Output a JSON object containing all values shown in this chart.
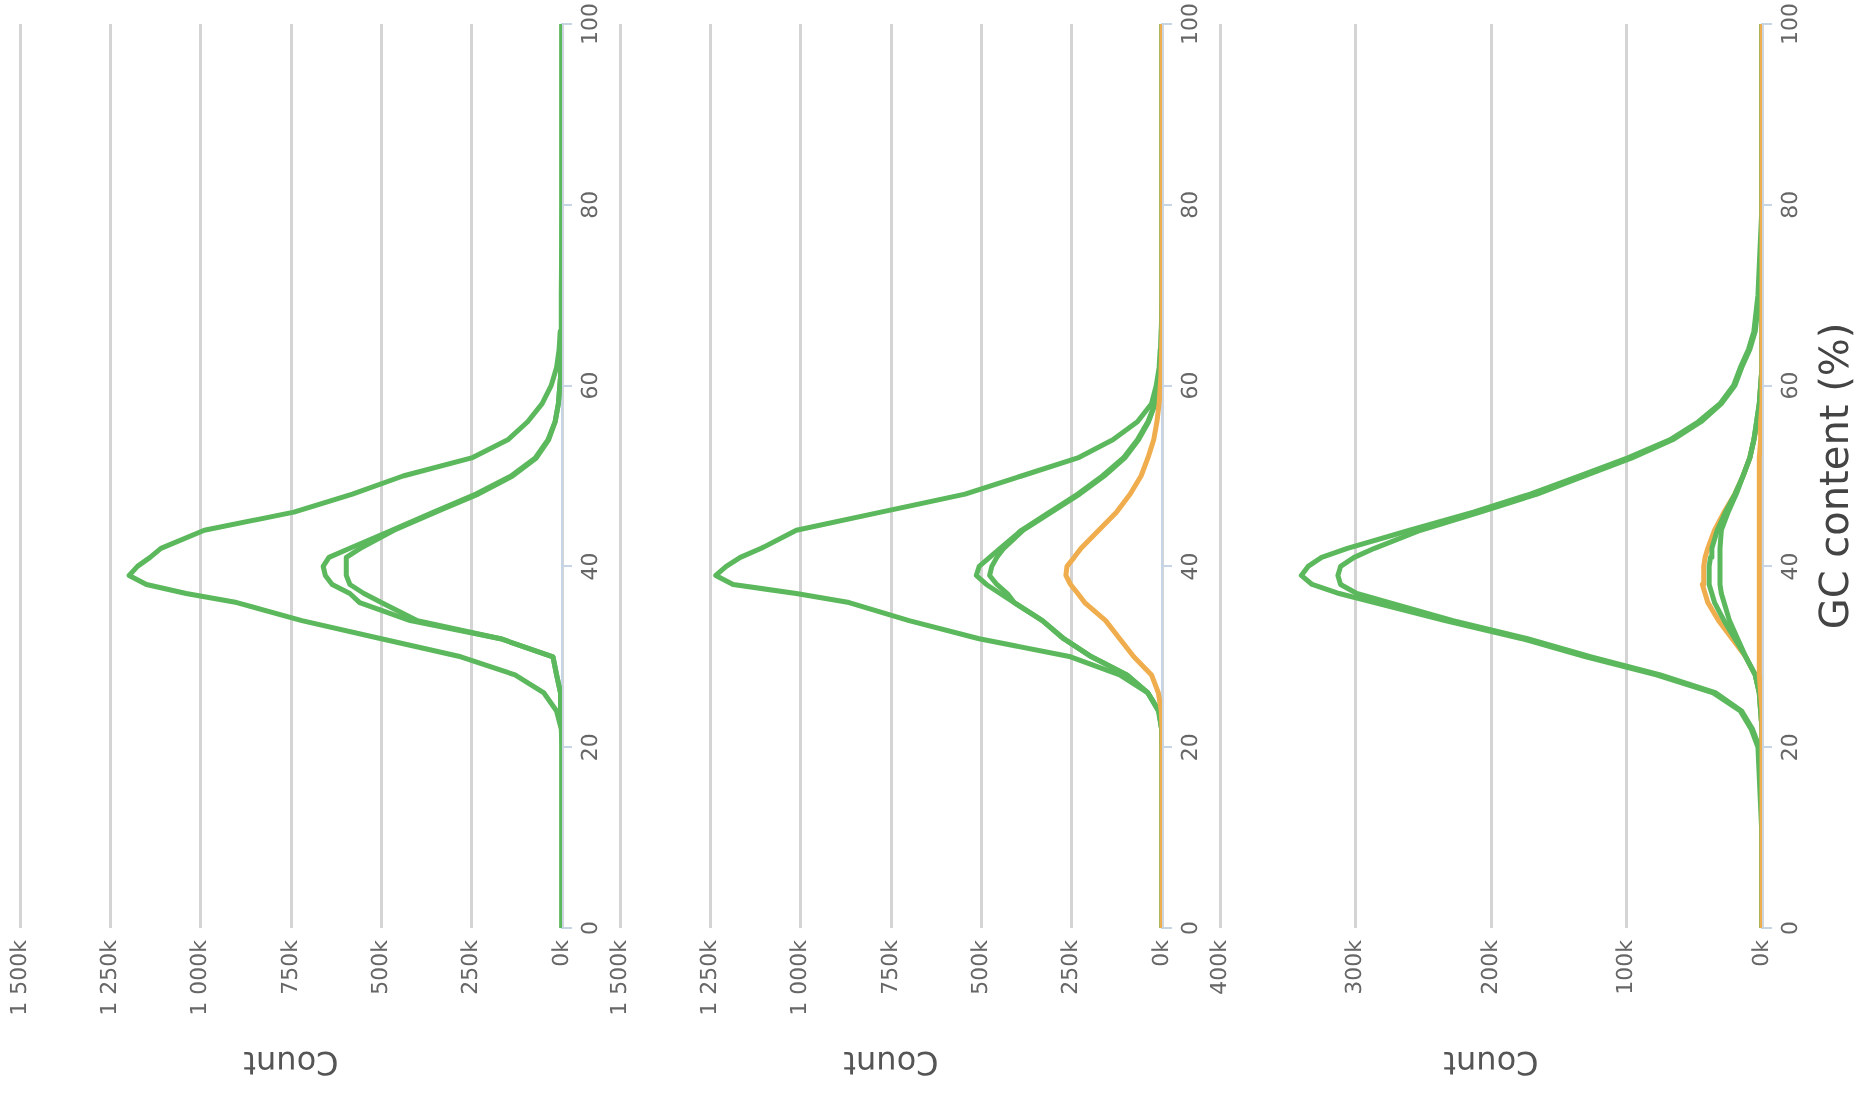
{
  "chart_data": [
    {
      "type": "line",
      "xlabel": "Count",
      "series": [
        {
          "color": "#5cb85c",
          "x": [
            0,
            0,
            2000,
            15000,
            50000,
            130000,
            280000,
            500000,
            720000,
            900000,
            1040000,
            1150000,
            1198000,
            1175000,
            1140000,
            1110000,
            990000,
            742000,
            580000,
            440000,
            250000,
            150000,
            95000,
            55000,
            30000,
            15000,
            8000,
            5000,
            2000,
            0,
            0
          ],
          "values": [
            0,
            20,
            22,
            24,
            26,
            28,
            30,
            32,
            34,
            36,
            37,
            38,
            39,
            40,
            41,
            42,
            44,
            46,
            48,
            50,
            52,
            54,
            56,
            58,
            60,
            62,
            64,
            66,
            70,
            80,
            100
          ]
        },
        {
          "color": "#5cb85c",
          "x": [
            0,
            0,
            1000,
            4000,
            15000,
            25000,
            170000,
            420000,
            560000,
            587000,
            636000,
            655000,
            661000,
            645000,
            587000,
            471000,
            355000,
            238000,
            141000,
            74000,
            39000,
            19000,
            10000,
            4000,
            0,
            0
          ],
          "values": [
            0,
            22,
            24,
            26,
            28,
            30,
            32,
            34,
            36,
            37,
            38,
            39,
            40,
            41,
            42,
            44,
            46,
            48,
            50,
            52,
            54,
            56,
            58,
            61,
            68,
            100
          ]
        },
        {
          "color": "#5cb85c",
          "x": [
            0,
            0,
            1000,
            4000,
            15000,
            25000,
            170000,
            400000,
            500000,
            548000,
            587000,
            597000,
            597000,
            558000,
            465000,
            350000,
            232000,
            137000,
            71000,
            37000,
            19000,
            10000,
            4000,
            0,
            0
          ],
          "values": [
            0,
            22,
            24,
            26,
            28,
            30,
            32,
            34,
            36,
            37,
            38,
            39,
            41,
            42,
            44,
            46,
            48,
            50,
            52,
            54,
            56,
            58,
            61,
            68,
            100
          ]
        }
      ],
      "xlim": [
        1500000,
        0
      ],
      "xticks": [
        {
          "value": 1500000,
          "label": "1 500k"
        },
        {
          "value": 1250000,
          "label": "1 250k"
        },
        {
          "value": 1000000,
          "label": "1 000k"
        },
        {
          "value": 750000,
          "label": "750k"
        },
        {
          "value": 500000,
          "label": "500k"
        },
        {
          "value": 250000,
          "label": "250k"
        },
        {
          "value": 0,
          "label": "0k"
        }
      ],
      "ylim": [
        0,
        100
      ],
      "yticks": [
        0,
        20,
        40,
        60,
        80,
        100
      ],
      "grid": "x"
    },
    {
      "type": "line",
      "xlabel": "Count",
      "series": [
        {
          "color": "#f0ad4e",
          "x": [
            0,
            0,
            2000,
            10000,
            29000,
            78000,
            117000,
            156000,
            214000,
            233000,
            253000,
            266000,
            263000,
            243000,
            224000,
            175000,
            126000,
            88000,
            58000,
            39000,
            23000,
            14000,
            8000,
            3000,
            0,
            0
          ],
          "values": [
            0,
            22,
            24,
            26,
            28,
            30,
            32,
            34,
            36,
            37,
            38,
            39,
            40,
            41,
            42,
            44,
            46,
            48,
            50,
            52,
            54,
            56,
            58,
            61,
            66,
            100
          ]
        },
        {
          "color": "#5cb85c",
          "x": [
            0,
            0,
            1000,
            10000,
            39000,
            117000,
            253000,
            506000,
            700000,
            866000,
            1012000,
            1187000,
            1235000,
            1206000,
            1167000,
            1109000,
            1012000,
            778000,
            545000,
            389000,
            233000,
            136000,
            68000,
            29000,
            16000,
            8000,
            5000,
            2000,
            0,
            0
          ],
          "values": [
            0,
            20,
            22,
            24,
            26,
            28,
            30,
            32,
            34,
            36,
            37,
            38,
            39,
            40,
            41,
            42,
            44,
            46,
            48,
            50,
            52,
            54,
            56,
            58,
            60,
            62,
            64,
            66,
            70,
            100
          ]
        },
        {
          "color": "#5cb85c",
          "x": [
            0,
            0,
            1000,
            8000,
            39000,
            97000,
            195000,
            272000,
            331000,
            409000,
            448000,
            486000,
            514000,
            506000,
            477000,
            448000,
            389000,
            311000,
            233000,
            165000,
            107000,
            68000,
            39000,
            19000,
            6000,
            0,
            0
          ],
          "values": [
            0,
            20,
            22,
            24,
            26,
            28,
            30,
            32,
            34,
            36,
            37,
            38,
            39,
            40,
            41,
            42,
            44,
            46,
            48,
            50,
            52,
            54,
            56,
            58,
            61,
            68,
            100
          ]
        },
        {
          "color": "#5cb85c",
          "x": [
            0,
            0,
            1000,
            8000,
            39000,
            97000,
            195000,
            272000,
            331000,
            409000,
            428000,
            457000,
            477000,
            471000,
            457000,
            438000,
            384000,
            306000,
            228000,
            160000,
            103000,
            65000,
            37000,
            19000,
            6000,
            0,
            0
          ],
          "values": [
            0,
            20,
            22,
            24,
            26,
            28,
            30,
            32,
            34,
            36,
            37,
            38,
            39,
            40,
            41,
            42,
            44,
            46,
            48,
            50,
            52,
            54,
            56,
            58,
            61,
            68,
            100
          ]
        }
      ],
      "xlim": [
        1500000,
        0
      ],
      "xticks": [
        {
          "value": 1500000,
          "label": "1 500k"
        },
        {
          "value": 1250000,
          "label": "1 250k"
        },
        {
          "value": 1000000,
          "label": "1 000k"
        },
        {
          "value": 750000,
          "label": "750k"
        },
        {
          "value": 500000,
          "label": "500k"
        },
        {
          "value": 250000,
          "label": "250k"
        },
        {
          "value": 0,
          "label": "0k"
        }
      ],
      "ylim": [
        0,
        100
      ],
      "yticks": [
        0,
        20,
        40,
        60,
        80,
        100
      ],
      "grid": "x"
    },
    {
      "type": "line",
      "xlabel": "Count",
      "ylabel": "GC content (%)",
      "series": [
        {
          "color": "#f0ad4e",
          "x": [
            0,
            0,
            1000,
            2000,
            2000,
            1000,
            1000,
            0,
            0
          ],
          "values": [
            0,
            24,
            26,
            28,
            52,
            54,
            56,
            58,
            100
          ]
        },
        {
          "color": "#5cb85c",
          "x": [
            0,
            0,
            1000,
            2000,
            5000,
            12000,
            20000,
            28000,
            35000,
            37000,
            39000,
            39000,
            38000,
            37000,
            33000,
            27000,
            20000,
            14000,
            9000,
            6000,
            4000,
            2000,
            1000,
            0,
            0
          ],
          "values": [
            0,
            22,
            24,
            26,
            28,
            30,
            32,
            34,
            36,
            37,
            38,
            40,
            41,
            42,
            44,
            46,
            48,
            50,
            52,
            54,
            56,
            58,
            60,
            62,
            100
          ]
        },
        {
          "color": "#5cb85c",
          "x": [
            0,
            0,
            1000,
            2000,
            5000,
            12000,
            18000,
            24000,
            28000,
            30000,
            31000,
            31000,
            30000,
            25000,
            19000,
            14000,
            9000,
            6000,
            4000,
            2000,
            1000,
            0,
            0
          ],
          "values": [
            0,
            22,
            24,
            26,
            28,
            30,
            32,
            34,
            36,
            37,
            38,
            42,
            44,
            46,
            48,
            50,
            52,
            54,
            56,
            58,
            60,
            62,
            100
          ]
        },
        {
          "color": "#5cb85c",
          "x": [
            0,
            0,
            3000,
            8000,
            16000,
            36000,
            78000,
            130000,
            177000,
            234000,
            286000,
            312000,
            332000,
            340000,
            335000,
            325000,
            306000,
            260000,
            213000,
            171000,
            135000,
            99000,
            68000,
            47000,
            31000,
            21000,
            16000,
            10000,
            6000,
            3000,
            0,
            0
          ],
          "values": [
            0,
            10,
            20,
            22,
            24,
            26,
            28,
            30,
            32,
            34,
            36,
            37,
            38,
            39,
            40,
            41,
            42,
            44,
            46,
            48,
            50,
            52,
            54,
            56,
            58,
            60,
            62,
            64,
            66,
            70,
            80,
            100
          ]
        },
        {
          "color": "#5cb85c",
          "x": [
            0,
            2000,
            7000,
            15000,
            34000,
            75000,
            126000,
            173000,
            228000,
            275000,
            299000,
            311000,
            313000,
            311000,
            301000,
            286000,
            252000,
            208000,
            166000,
            131000,
            96000,
            66000,
            45000,
            30000,
            20000,
            15000,
            9000,
            5000,
            2000,
            0
          ],
          "values": [
            16,
            20,
            22,
            24,
            26,
            28,
            30,
            32,
            34,
            36,
            37,
            38,
            39,
            40,
            41,
            42,
            44,
            46,
            48,
            50,
            52,
            54,
            56,
            58,
            60,
            62,
            64,
            66,
            70,
            78
          ]
        },
        {
          "color": "#f0ad4e",
          "x": [
            0,
            0,
            1000,
            2000,
            5000,
            12000,
            22000,
            32000,
            40000,
            42000,
            44000,
            43000,
            42000,
            40000,
            35000,
            28000,
            20000,
            14000,
            9000,
            6000,
            3000,
            2000,
            1000,
            0,
            0
          ],
          "values": [
            0,
            22,
            24,
            26,
            28,
            30,
            32,
            34,
            36,
            37,
            38,
            40,
            41,
            42,
            44,
            46,
            48,
            50,
            52,
            54,
            56,
            58,
            60,
            62,
            100
          ]
        }
      ],
      "xlim": [
        400000,
        0
      ],
      "xticks": [
        {
          "value": 400000,
          "label": "400k"
        },
        {
          "value": 300000,
          "label": "300k"
        },
        {
          "value": 200000,
          "label": "200k"
        },
        {
          "value": 100000,
          "label": "100k"
        },
        {
          "value": 0,
          "label": "0k"
        }
      ],
      "ylim": [
        0,
        100
      ],
      "yticks": [
        0,
        20,
        40,
        60,
        80,
        100
      ],
      "grid": "x"
    }
  ]
}
